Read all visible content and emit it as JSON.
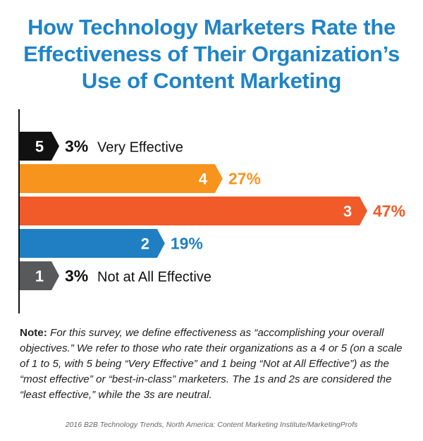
{
  "title_lines": [
    "How Technology Marketers Rate the",
    "Effectiveness of Their Organization’s",
    "Use of Content Marketing"
  ],
  "chart_data": {
    "type": "bar",
    "orientation": "horizontal",
    "title": "How Technology Marketers Rate the Effectiveness of Their Organization’s Use of Content Marketing",
    "categories": [
      "5",
      "4",
      "3",
      "2",
      "1"
    ],
    "values": [
      3,
      27,
      47,
      19,
      3
    ],
    "value_labels": [
      "3%",
      "27%",
      "47%",
      "19%",
      "3%"
    ],
    "annotations": [
      "Very Effective",
      "",
      "",
      "",
      "Not at All Effective"
    ],
    "colors": [
      "#111111",
      "#f7941d",
      "#f15a29",
      "#1f7fc2",
      "#58595b"
    ],
    "xlim": [
      0,
      47
    ],
    "grid": false,
    "legend": "none"
  },
  "note": {
    "label": "Note:",
    "text": "For this survey, we define effectiveness as “accomplishing your overall objectives.” We refer to those who rate their organizations as a 4 or 5 (on a scale of 1 to 5, with 5 being “Very Effective” and 1 being “Not at All Effective”) as the “most effective” or “best-in-class” marketers. The 1s and 2s are considered the “least effective,” while the 3s are neutral."
  },
  "source": "2016 B2B Technology Trends, North America: Content Marketing Institute/MarketingProfs"
}
